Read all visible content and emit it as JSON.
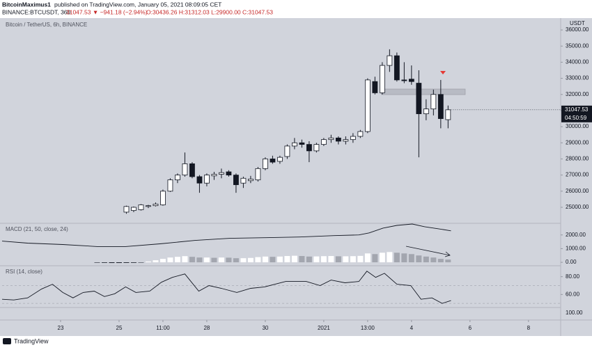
{
  "header": {
    "author": "BitcoinMaximus1",
    "published": "published on TradingView.com, January 05, 2021 08:09:05 CET",
    "symbol": "BINANCE:BTCUSDT, 360",
    "change": "31047.53 ▼ −941.18 (−2.94%)",
    "ohlc": "O:30436.26 H:31312.03 L:29900.00 C:31047.53"
  },
  "last_price_label": "31047.53",
  "countdown": "04:50:59",
  "currency": "USDT",
  "bottom_pane_scale": "100.00",
  "logo": "TradingView",
  "chart_data": [
    {
      "type": "candlestick",
      "title": "Bitcoin / TetherUS, 6h, BINANCE",
      "x": [
        9,
        10,
        11,
        12,
        13,
        14,
        15,
        16,
        17,
        18,
        19,
        20,
        21,
        22,
        23,
        24,
        25,
        26,
        27,
        28,
        29,
        30,
        31,
        32,
        33,
        34,
        35,
        36,
        37,
        38,
        39,
        40,
        41,
        42,
        43,
        44,
        45,
        46,
        47,
        48,
        49,
        50,
        51,
        52,
        53
      ],
      "open": [
        24700,
        24800,
        24850,
        25050,
        25100,
        25150,
        26000,
        26700,
        27000,
        27700,
        26900,
        26500,
        26950,
        27050,
        27200,
        27000,
        26500,
        26650,
        26700,
        27400,
        28000,
        27850,
        28150,
        28800,
        29000,
        28900,
        28500,
        28900,
        29200,
        29300,
        29100,
        29200,
        29400,
        29700,
        32800,
        32100,
        33800,
        34400,
        32900,
        32950,
        32700,
        30800,
        31100,
        32000,
        30436.26
      ],
      "high": [
        25100,
        25050,
        25200,
        25150,
        25300,
        26100,
        26800,
        27100,
        28400,
        27800,
        27000,
        27100,
        27200,
        27400,
        27300,
        27100,
        26900,
        26950,
        27500,
        28100,
        28200,
        28200,
        28900,
        29300,
        29200,
        29100,
        29000,
        29300,
        29500,
        29400,
        29400,
        29600,
        29800,
        33000,
        33100,
        34000,
        34800,
        34600,
        34000,
        33800,
        33500,
        31700,
        32300,
        32900,
        31312.03
      ],
      "low": [
        24600,
        24700,
        24800,
        24950,
        25050,
        25100,
        25950,
        26500,
        26900,
        26800,
        25900,
        26300,
        26700,
        26800,
        26900,
        25900,
        26200,
        26500,
        26600,
        27300,
        27700,
        27700,
        28000,
        28600,
        28700,
        27800,
        28400,
        28800,
        29000,
        28900,
        28900,
        29000,
        29300,
        29600,
        32000,
        32000,
        33400,
        32800,
        32700,
        32600,
        28100,
        30400,
        30700,
        29900,
        29900
      ],
      "close": [
        25050,
        25000,
        25150,
        25100,
        25200,
        26000,
        26700,
        27000,
        27700,
        26900,
        26500,
        27000,
        27050,
        27150,
        27000,
        26400,
        26800,
        26750,
        27400,
        28000,
        27800,
        28100,
        28800,
        29000,
        28900,
        28500,
        28900,
        29200,
        29300,
        29100,
        29200,
        29400,
        29700,
        32900,
        32100,
        33800,
        34400,
        32900,
        32850,
        32800,
        30800,
        31100,
        32000,
        30500,
        31047.53
      ],
      "up_color": "#ffffff",
      "down_color": "#131722",
      "ylim": [
        24050,
        36650
      ],
      "yticks": [
        {
          "value": 25000,
          "label": "25000.00"
        },
        {
          "value": 26000,
          "label": "26000.00"
        },
        {
          "value": 27000,
          "label": "27000.00"
        },
        {
          "value": 28000,
          "label": "28000.00"
        },
        {
          "value": 29000,
          "label": "29000.00"
        },
        {
          "value": 30000,
          "label": "30000.00"
        },
        {
          "value": 31000,
          "label": "31000.00"
        },
        {
          "value": 32000,
          "label": "32000.00"
        },
        {
          "value": 33000,
          "label": "33000.00"
        },
        {
          "value": 34000,
          "label": "34000.00"
        },
        {
          "value": 35000,
          "label": "35000.00"
        },
        {
          "value": 36000,
          "label": "36000.00"
        }
      ],
      "xlim": [
        -8,
        68.4
      ],
      "xticks": [
        {
          "value": 0,
          "label": "23"
        },
        {
          "value": 8,
          "label": "25"
        },
        {
          "value": 14,
          "label": "11:00"
        },
        {
          "value": 20,
          "label": "28"
        },
        {
          "value": 28,
          "label": "30"
        },
        {
          "value": 36,
          "label": "2021"
        },
        {
          "value": 42,
          "label": "13:00"
        },
        {
          "value": 48,
          "label": "4"
        },
        {
          "value": 56,
          "label": "6"
        },
        {
          "value": 64,
          "label": "8"
        }
      ]
    },
    {
      "type": "macd",
      "title": "MACD (21, 50, close, 24)",
      "line": {
        "color": "#131722",
        "x": [
          -8,
          -4.5,
          0.3,
          5,
          8.9,
          13.6,
          18.4,
          23.1,
          27.9,
          32.7,
          37.4,
          40.8,
          42.2,
          44.1,
          46,
          48.1,
          49.8,
          51.7,
          53.4
        ],
        "values": [
          1550,
          1400,
          1300,
          1150,
          1150,
          1350,
          1600,
          1750,
          1800,
          1850,
          1950,
          2000,
          2150,
          2500,
          2700,
          2800,
          2600,
          2450,
          2300
        ]
      },
      "histogram": {
        "colors": {
          "negative": "#131722",
          "rising": "#ffffff",
          "falling": "#a3a6af"
        },
        "x": [
          5,
          6,
          7,
          8,
          9,
          10,
          11,
          12,
          13,
          14,
          15,
          16,
          17,
          18,
          19,
          20,
          21,
          22,
          23,
          24,
          25,
          26,
          27,
          28,
          29,
          30,
          31,
          32,
          33,
          34,
          35,
          36,
          37,
          38,
          39,
          40,
          41,
          42,
          43,
          44,
          45,
          46,
          47,
          48,
          49,
          50,
          51,
          52,
          53
        ],
        "values": [
          -30,
          -40,
          -50,
          -50,
          -45,
          -40,
          -20,
          60,
          150,
          250,
          350,
          400,
          450,
          400,
          350,
          350,
          330,
          350,
          340,
          300,
          300,
          320,
          380,
          420,
          400,
          420,
          460,
          480,
          460,
          420,
          430,
          450,
          460,
          440,
          440,
          450,
          470,
          650,
          600,
          700,
          750,
          700,
          650,
          600,
          500,
          420,
          350,
          250,
          200
        ]
      },
      "ylim": [
        -200,
        2800
      ],
      "yticks": [
        {
          "value": 0,
          "label": "0.00"
        },
        {
          "value": 1000,
          "label": "1000.00"
        },
        {
          "value": 2000,
          "label": "2000.00"
        }
      ]
    },
    {
      "type": "line",
      "title": "RSI (14, close)",
      "color": "#131722",
      "x": [
        -8,
        -6.4,
        -4.5,
        -2.6,
        -1.1,
        0.3,
        1.7,
        3.1,
        4.6,
        6,
        7.4,
        8.9,
        10.3,
        12.2,
        13.8,
        15.3,
        17,
        18.9,
        20.3,
        22,
        24.1,
        26,
        27.9,
        30.8,
        33.6,
        35.5,
        37,
        38.9,
        40.8,
        41.9,
        43.1,
        44.3,
        46,
        47.9,
        49.3,
        50.8,
        52.2,
        53.4
      ],
      "values": [
        54.6,
        53.8,
        56.2,
        66.2,
        71.5,
        62.3,
        56.2,
        62.3,
        63.8,
        57.7,
        60.8,
        68.5,
        62.3,
        63.8,
        73.8,
        79.2,
        83.1,
        63.8,
        70,
        66.9,
        62.3,
        66.9,
        68.5,
        74.6,
        74.6,
        70,
        76.2,
        73.1,
        74.6,
        86.2,
        79.2,
        83.8,
        71.5,
        70,
        54.6,
        56.2,
        50,
        53.1
      ],
      "bands": [
        70,
        50
      ],
      "ylim": [
        45.4,
        91.5
      ],
      "yticks": [
        {
          "value": 60,
          "label": "60.00"
        },
        {
          "value": 80,
          "label": "80.00"
        }
      ]
    }
  ]
}
